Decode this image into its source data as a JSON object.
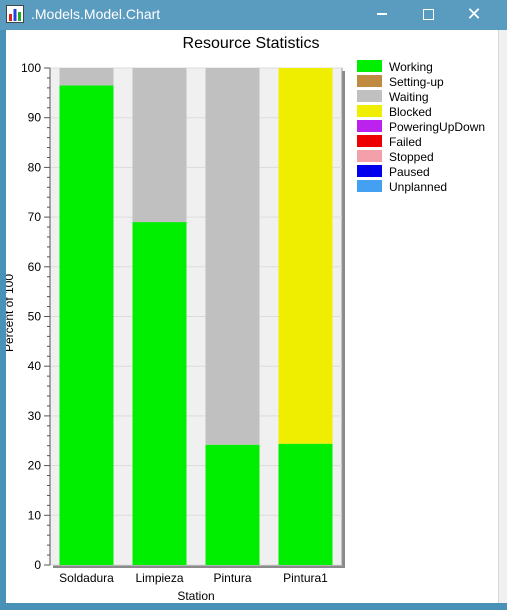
{
  "window": {
    "title": ".Models.Model.Chart",
    "icon": "bar-chart-icon",
    "buttons": {
      "minimize": "minimize-icon",
      "maximize": "maximize-icon",
      "close": "close-icon"
    }
  },
  "colors": {
    "titlebar": "#5a9bc0",
    "working": "#00ee00",
    "setting_up": "#c08a40",
    "waiting": "#c0c0c0",
    "blocked": "#f0ee00",
    "powering": "#bb22ee",
    "failed": "#ee0000",
    "stopped": "#f4a0aa",
    "paused": "#0000ee",
    "unplanned": "#44a0f0"
  },
  "chart_data": {
    "type": "bar",
    "stacked": true,
    "title": "Resource Statistics",
    "xlabel": "Station",
    "ylabel": "Percent of 100",
    "ylim": [
      0,
      100
    ],
    "yticks": [
      0,
      10,
      20,
      30,
      40,
      50,
      60,
      70,
      80,
      90,
      100
    ],
    "grid": true,
    "legend_position": "right",
    "categories": [
      "Soldadura",
      "Limpieza",
      "Pintura",
      "Pintura1"
    ],
    "series": [
      {
        "name": "Working",
        "color": "#00ee00",
        "values": [
          96.5,
          69,
          24.2,
          24.4
        ]
      },
      {
        "name": "Setting-up",
        "color": "#c08a40",
        "values": [
          0,
          0,
          0,
          0
        ]
      },
      {
        "name": "Waiting",
        "color": "#c0c0c0",
        "values": [
          3.5,
          31,
          75.8,
          0
        ]
      },
      {
        "name": "Blocked",
        "color": "#f0ee00",
        "values": [
          0,
          0,
          0,
          75.6
        ]
      },
      {
        "name": "PoweringUpDown",
        "color": "#bb22ee",
        "values": [
          0,
          0,
          0,
          0
        ]
      },
      {
        "name": "Failed",
        "color": "#ee0000",
        "values": [
          0,
          0,
          0,
          0
        ]
      },
      {
        "name": "Stopped",
        "color": "#f4a0aa",
        "values": [
          0,
          0,
          0,
          0
        ]
      },
      {
        "name": "Paused",
        "color": "#0000ee",
        "values": [
          0,
          0,
          0,
          0
        ]
      },
      {
        "name": "Unplanned",
        "color": "#44a0f0",
        "values": [
          0,
          0,
          0,
          0
        ]
      }
    ]
  }
}
